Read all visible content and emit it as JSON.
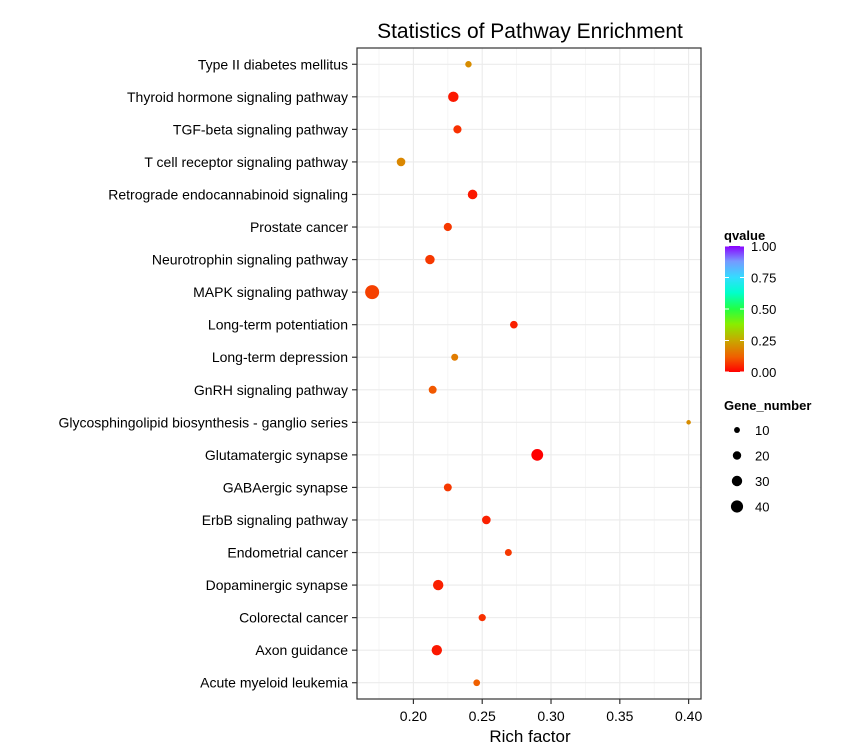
{
  "chart_data": {
    "type": "scatter",
    "title": "Statistics of Pathway Enrichment",
    "xlabel": "Rich factor",
    "ylabel": "",
    "xlim": [
      0.159,
      0.409
    ],
    "xticks": [
      0.2,
      0.25,
      0.3,
      0.35,
      0.4
    ],
    "xtick_labels": [
      "0.20",
      "0.25",
      "0.30",
      "0.35",
      "0.40"
    ],
    "grid": true,
    "categories": [
      "Type II diabetes mellitus",
      "Thyroid hormone signaling pathway",
      "TGF-beta signaling pathway",
      "T cell receptor signaling pathway",
      "Retrograde endocannabinoid signaling",
      "Prostate cancer",
      "Neurotrophin signaling pathway",
      "MAPK signaling pathway",
      "Long-term potentiation",
      "Long-term depression",
      "GnRH signaling pathway",
      "Glycosphingolipid biosynthesis - ganglio series",
      "Glutamatergic synapse",
      "GABAergic synapse",
      "ErbB signaling pathway",
      "Endometrial cancer",
      "Dopaminergic synapse",
      "Colorectal cancer",
      "Axon guidance",
      "Acute myeloid leukemia"
    ],
    "series": [
      {
        "name": "pathways",
        "points": [
          {
            "pathway": "Type II diabetes mellitus",
            "rich_factor": 0.24,
            "gene_number": 12,
            "qvalue": 0.2
          },
          {
            "pathway": "Thyroid hormone signaling pathway",
            "rich_factor": 0.229,
            "gene_number": 30,
            "qvalue": 0.03
          },
          {
            "pathway": "TGF-beta signaling pathway",
            "rich_factor": 0.232,
            "gene_number": 19,
            "qvalue": 0.06
          },
          {
            "pathway": "T cell receptor signaling pathway",
            "rich_factor": 0.191,
            "gene_number": 21,
            "qvalue": 0.19
          },
          {
            "pathway": "Retrograde endocannabinoid signaling",
            "rich_factor": 0.243,
            "gene_number": 26,
            "qvalue": 0.03
          },
          {
            "pathway": "Prostate cancer",
            "rich_factor": 0.225,
            "gene_number": 19,
            "qvalue": 0.07
          },
          {
            "pathway": "Neurotrophin signaling pathway",
            "rich_factor": 0.212,
            "gene_number": 25,
            "qvalue": 0.07
          },
          {
            "pathway": "MAPK signaling pathway",
            "rich_factor": 0.17,
            "gene_number": 52,
            "qvalue": 0.08
          },
          {
            "pathway": "Long-term potentiation",
            "rich_factor": 0.273,
            "gene_number": 17,
            "qvalue": 0.04
          },
          {
            "pathway": "Long-term depression",
            "rich_factor": 0.23,
            "gene_number": 14,
            "qvalue": 0.17
          },
          {
            "pathway": "GnRH signaling pathway",
            "rich_factor": 0.214,
            "gene_number": 18,
            "qvalue": 0.11
          },
          {
            "pathway": "Glycosphingolipid biosynthesis - ganglio series",
            "rich_factor": 0.4,
            "gene_number": 6,
            "qvalue": 0.2
          },
          {
            "pathway": "Glutamatergic synapse",
            "rich_factor": 0.29,
            "gene_number": 38,
            "qvalue": 0.0
          },
          {
            "pathway": "GABAergic synapse",
            "rich_factor": 0.225,
            "gene_number": 18,
            "qvalue": 0.07
          },
          {
            "pathway": "ErbB signaling pathway",
            "rich_factor": 0.253,
            "gene_number": 21,
            "qvalue": 0.04
          },
          {
            "pathway": "Endometrial cancer",
            "rich_factor": 0.269,
            "gene_number": 14,
            "qvalue": 0.07
          },
          {
            "pathway": "Dopaminergic synapse",
            "rich_factor": 0.218,
            "gene_number": 30,
            "qvalue": 0.04
          },
          {
            "pathway": "Colorectal cancer",
            "rich_factor": 0.25,
            "gene_number": 15,
            "qvalue": 0.06
          },
          {
            "pathway": "Axon guidance",
            "rich_factor": 0.217,
            "gene_number": 30,
            "qvalue": 0.03
          },
          {
            "pathway": "Acute myeloid leukemia",
            "rich_factor": 0.246,
            "gene_number": 13,
            "qvalue": 0.12
          }
        ]
      }
    ],
    "legend": {
      "position": "right",
      "color": {
        "title": "qvalue",
        "range": [
          0,
          1
        ],
        "ticks": [
          "1.00",
          "0.75",
          "0.50",
          "0.25",
          "0.00"
        ],
        "tick_values": [
          1.0,
          0.75,
          0.5,
          0.25,
          0.0
        ],
        "gradient": [
          "#ff0000",
          "#f07000",
          "#c8b400",
          "#7fff00",
          "#00ff66",
          "#00ffff",
          "#6699ff",
          "#8800ff"
        ]
      },
      "size": {
        "title": "Gene_number",
        "values": [
          10,
          20,
          30,
          40
        ],
        "labels": [
          "10",
          "20",
          "30",
          "40"
        ]
      }
    }
  }
}
